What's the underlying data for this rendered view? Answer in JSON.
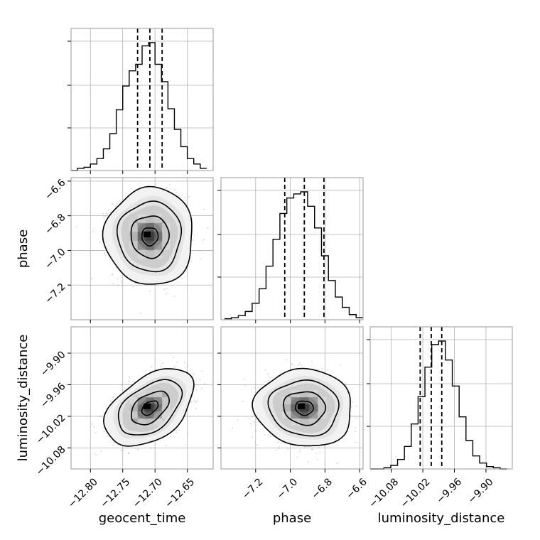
{
  "chart_data": {
    "type": "corner",
    "parameters": [
      "geocent_time",
      "phase",
      "luminosity_distance"
    ],
    "ranges": {
      "geocent_time": [
        -12.83,
        -12.61
      ],
      "phase": [
        -7.4,
        -6.58
      ],
      "luminosity_distance": [
        -10.12,
        -9.85
      ]
    },
    "ticks": {
      "geocent_time": [
        "−12.80",
        "−12.75",
        "−12.70",
        "−12.65"
      ],
      "geocent_time_values": [
        -12.8,
        -12.75,
        -12.7,
        -12.65
      ],
      "phase": [
        "−7.2",
        "−7.0",
        "−6.8",
        "−6.6"
      ],
      "phase_values": [
        -7.2,
        -7.0,
        -6.8,
        -6.6
      ],
      "luminosity_distance": [
        "−10.08",
        "−10.02",
        "−9.96",
        "−9.90"
      ],
      "luminosity_distance_values": [
        -10.08,
        -10.02,
        -9.96,
        -9.9
      ]
    },
    "quantiles": {
      "geocent_time": [
        -12.727,
        -12.708,
        -12.689
      ],
      "phase": [
        -7.032,
        -6.919,
        -6.806
      ],
      "luminosity_distance": [
        -10.025,
        -10.004,
        -9.984
      ]
    },
    "histograms": {
      "geocent_time": {
        "edges": [
          -12.83,
          -12.82,
          -12.81,
          -12.8,
          -12.79,
          -12.78,
          -12.77,
          -12.76,
          -12.75,
          -12.74,
          -12.73,
          -12.72,
          -12.71,
          -12.7,
          -12.69,
          -12.68,
          -12.67,
          -12.66,
          -12.65,
          -12.64,
          -12.63,
          -12.62
        ],
        "counts": [
          0,
          2,
          3,
          6,
          11,
          20,
          34,
          56,
          78,
          92,
          98,
          115,
          118,
          98,
          82,
          57,
          38,
          22,
          11,
          6,
          2
        ]
      },
      "phase": {
        "edges": [
          -7.38,
          -7.34,
          -7.3,
          -7.26,
          -7.22,
          -7.18,
          -7.14,
          -7.1,
          -7.06,
          -7.02,
          -6.98,
          -6.94,
          -6.9,
          -6.86,
          -6.82,
          -6.78,
          -6.74,
          -6.7,
          -6.66,
          -6.62,
          -6.58
        ],
        "counts": [
          1,
          2,
          4,
          8,
          16,
          30,
          52,
          78,
          103,
          118,
          122,
          124,
          110,
          89,
          62,
          38,
          22,
          12,
          5,
          2
        ]
      },
      "luminosity_distance": {
        "edges": [
          -10.12,
          -10.107,
          -10.094,
          -10.081,
          -10.068,
          -10.055,
          -10.042,
          -10.029,
          -10.016,
          -10.003,
          -9.99,
          -9.977,
          -9.964,
          -9.951,
          -9.938,
          -9.925,
          -9.912,
          -9.899,
          -9.886,
          -9.873,
          -9.86
        ],
        "counts": [
          0,
          0,
          1,
          3,
          8,
          19,
          38,
          61,
          86,
          105,
          108,
          92,
          70,
          44,
          24,
          11,
          5,
          2,
          1,
          0
        ]
      }
    },
    "joint": [
      {
        "x": "geocent_time",
        "y": "phase",
        "mean": [
          -12.708,
          -6.919
        ],
        "sd": [
          0.028,
          0.115
        ],
        "corr": 0.0
      },
      {
        "x": "geocent_time",
        "y": "luminosity_distance",
        "mean": [
          -12.708,
          -10.004
        ],
        "sd": [
          0.028,
          0.03
        ],
        "corr": 0.45
      },
      {
        "x": "phase",
        "y": "luminosity_distance",
        "mean": [
          -6.919,
          -10.004
        ],
        "sd": [
          0.115,
          0.03
        ],
        "corr": -0.05
      }
    ],
    "grid": true,
    "line_style": {
      "quantile": "dashed"
    },
    "colors": {
      "lines": "#000000",
      "grid": "#b0b0b0",
      "points": "#7f7f7f"
    }
  }
}
